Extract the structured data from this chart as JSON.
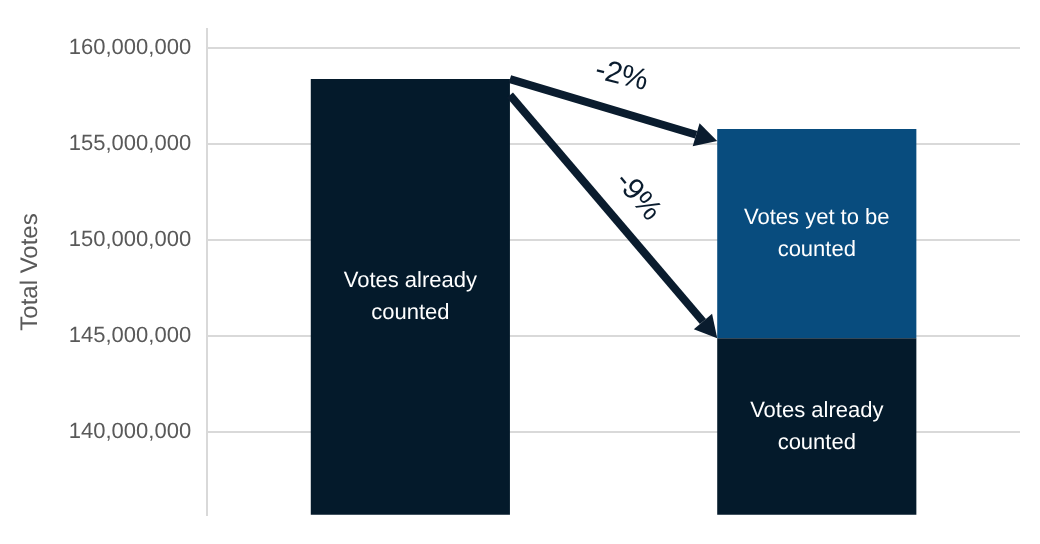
{
  "chart_data": {
    "type": "bar",
    "stacked": true,
    "ylabel": "Total Votes",
    "categories": [
      null,
      null
    ],
    "series": [
      {
        "name": "Votes already counted",
        "color": "#041a2b",
        "values": [
          158400000,
          144900000
        ]
      },
      {
        "name": "Votes yet to be counted",
        "color": "#084c7e",
        "values": [
          null,
          10900000
        ],
        "base": [
          null,
          144900000
        ]
      }
    ],
    "annotations": [
      "-2%",
      "-9%"
    ],
    "ylim": [
      135700000,
      161000000
    ],
    "yticks": [
      {
        "value": 140000000,
        "label": "140,000,000"
      },
      {
        "value": 145000000,
        "label": "145,000,000"
      },
      {
        "value": 150000000,
        "label": "150,000,000"
      },
      {
        "value": 155000000,
        "label": "155,000,000"
      },
      {
        "value": 160000000,
        "label": "160,000,000"
      }
    ],
    "grid": "y",
    "legend": false
  }
}
